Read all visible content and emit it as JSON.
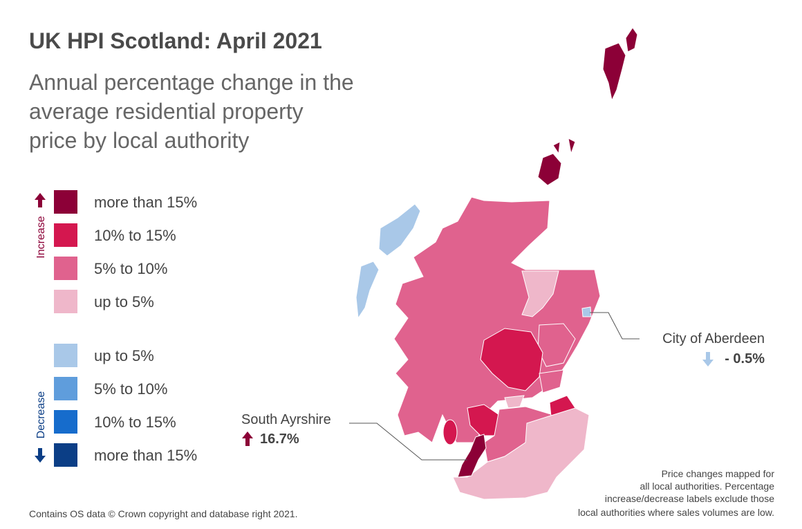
{
  "header": {
    "title": "UK HPI Scotland: April 2021",
    "subtitle_lines": [
      "Annual percentage change in the",
      "average residential property",
      "price by local authority"
    ]
  },
  "legend": {
    "increase_label": "Increase",
    "decrease_label": "Decrease",
    "increase": [
      {
        "label": "more than 15%",
        "color": "#8c0037"
      },
      {
        "label": "10% to 15%",
        "color": "#d4174f"
      },
      {
        "label": "5% to 10%",
        "color": "#e0628e"
      },
      {
        "label": "up to 5%",
        "color": "#efb7ca"
      }
    ],
    "decrease": [
      {
        "label": "up to 5%",
        "color": "#a9c8e8"
      },
      {
        "label": "5% to 10%",
        "color": "#5f9ddc"
      },
      {
        "label": "10% to 15%",
        "color": "#166ccc"
      },
      {
        "label": "more than 15%",
        "color": "#0b3e86"
      }
    ]
  },
  "callouts": [
    {
      "name": "South Ayrshire",
      "change": "16.7%"
    },
    {
      "name": "City of Aberdeen",
      "change": "- 0.5%"
    }
  ],
  "footnote_lines": [
    "Price changes mapped for",
    "all local authorities. Percentage",
    "increase/decrease labels exclude those",
    "local authorities where sales volumes are low."
  ],
  "source": "Contains OS data © Crown copyright and database right 2021."
}
